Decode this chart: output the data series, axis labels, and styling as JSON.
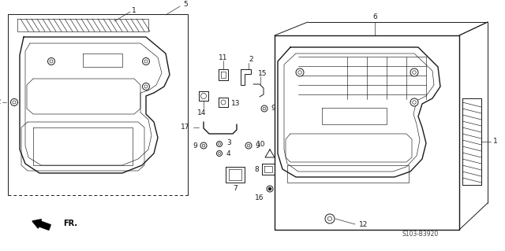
{
  "bg_color": "#ffffff",
  "line_color": "#1a1a1a",
  "diagram_code": "S103-B3920",
  "fr_label": "FR.",
  "lw_main": 1.0,
  "lw_med": 0.7,
  "lw_thin": 0.45,
  "font_size": 6.5
}
